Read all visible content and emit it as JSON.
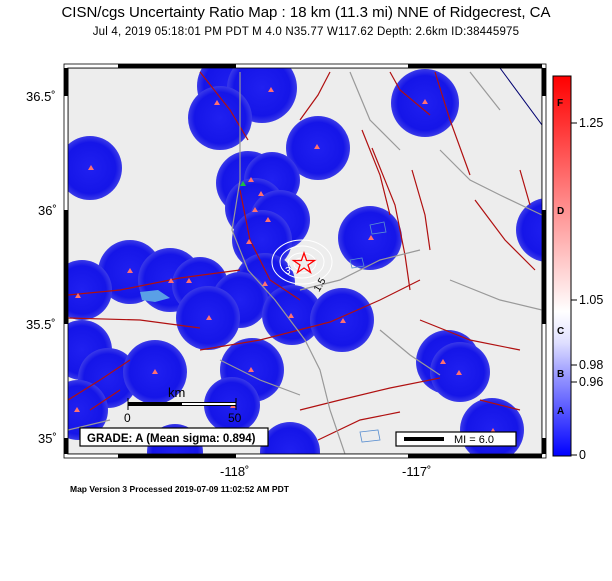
{
  "header": {
    "title": "CISN/cgs Uncertainty Ratio Map : 18 km (11.3 mi) NNE of Ridgecrest, CA",
    "subtitle": "Jul  4, 2019 05:18:01 PM PDT   M 4.0   N35.77 W117.62   Depth: 2.6km   ID:38445975"
  },
  "axes": {
    "lat_labels": [
      "36.5˚",
      "36˚",
      "35.5˚",
      "35˚"
    ],
    "lon_labels": [
      "-118˚",
      "-117˚"
    ]
  },
  "map": {
    "scale_bar_label": "km",
    "scale_bar_start": "0",
    "scale_bar_end": "50",
    "grade_box": "GRADE: A (Mean sigma: 0.894)",
    "magnitude_legend": "MI = 6.0",
    "contour_labels": [
      "3",
      "1.5"
    ]
  },
  "colorbar": {
    "grade_letters": [
      "F",
      "D",
      "C",
      "B",
      "A"
    ],
    "tick_labels": [
      "1.25",
      "1.05",
      "0.98",
      "0.96",
      "0"
    ],
    "colors": {
      "top": "#ff0000",
      "mid": "#ffffff",
      "bottom": "#0000ff"
    }
  },
  "footer": {
    "version": "Map Version 3 Processed 2019-07-09 11:02:52 AM PDT"
  },
  "colors": {
    "station_fill": "#1010e6",
    "fault": "#b01010",
    "road": "#9a9a9a",
    "station_marker": "#ff6666",
    "epicenter": "#ff0000",
    "background": "#eeeeee"
  }
}
